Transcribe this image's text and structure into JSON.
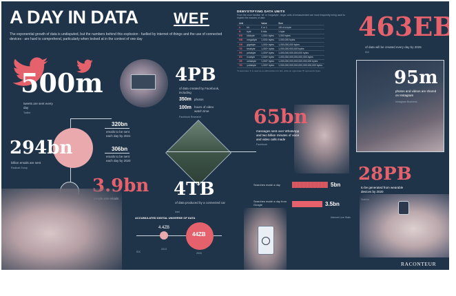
{
  "header": {
    "title": "A DAY IN DATA",
    "logo_text": "WEF",
    "intro": "The exponential growth of data is undisputed, but the numbers behind this explosion - fuelled by internet of things and the use of connected devices - are hard to comprehend, particularly when looked at in the context of one day"
  },
  "units": {
    "title": "DEMYSTIFYING DATA UNITS",
    "subtitle": "From the more familiar 'bit' or 'megabyte', larger units of measurement are more frequently being used to explain the masses of data",
    "col_unit": "Unit",
    "col_value": "Value",
    "col_size": "Size",
    "rows": [
      {
        "abbr": "b",
        "name": "bit",
        "value": "0 or 1",
        "size": "1/8 of a byte"
      },
      {
        "abbr": "B",
        "name": "byte",
        "value": "8 bits",
        "size": "1 byte"
      },
      {
        "abbr": "KB",
        "name": "kilobyte",
        "value": "1,000¹ bytes",
        "size": "1,000 bytes"
      },
      {
        "abbr": "MB",
        "name": "megabyte",
        "value": "1,000² bytes",
        "size": "1,000,000 bytes"
      },
      {
        "abbr": "GB",
        "name": "gigabyte",
        "value": "1,000³ bytes",
        "size": "1,000,000,000 bytes"
      },
      {
        "abbr": "TB",
        "name": "terabyte",
        "value": "1,000⁴ bytes",
        "size": "1,000,000,000,000 bytes"
      },
      {
        "abbr": "PB",
        "name": "petabyte",
        "value": "1,000⁵ bytes",
        "size": "1,000,000,000,000,000 bytes"
      },
      {
        "abbr": "EB",
        "name": "exabyte",
        "value": "1,000⁶ bytes",
        "size": "1,000,000,000,000,000,000 bytes"
      },
      {
        "abbr": "ZB",
        "name": "zettabyte",
        "value": "1,000⁷ bytes",
        "size": "1,000,000,000,000,000,000,000 bytes"
      },
      {
        "abbr": "YB",
        "name": "yottabyte",
        "value": "1,000⁸ bytes",
        "size": "1,000,000,000,000,000,000,000,000 bytes"
      }
    ],
    "footnote": "*A lowercase 'b' is used as an abbreviation for bits, while an uppercase 'B' represents bytes"
  },
  "stats": {
    "eb": {
      "value": "463EB",
      "desc": "of data will be created every day by 2025",
      "source": "IDC"
    },
    "tweets": {
      "value": "500m",
      "desc": "tweets are sent every day",
      "source": "Twitter"
    },
    "facebook": {
      "value": "4PB",
      "desc": "of data created by Facebook, including",
      "photos_value": "350m",
      "photos_desc": "photos",
      "video_value": "100m",
      "video_desc": "hours of video watch time",
      "source": "Facebook Research"
    },
    "instagram": {
      "value": "95m",
      "desc": "photos and videos are shared on Instagram",
      "source": "Instagram Business"
    },
    "whatsapp": {
      "value": "65bn",
      "desc": "messages sent over WhatsApp and two billion minutes of voice and video calls made",
      "source": "Facebook"
    },
    "emails": {
      "value": "294bn",
      "desc": "billion emails are sent",
      "source": "Radicati Group"
    },
    "emails_2021": {
      "value": "320bn",
      "desc": "emails to be sent each day by 2021"
    },
    "emails_2020": {
      "value": "306bn",
      "desc": "emails to be sent each day by 2020"
    },
    "email_users": {
      "value": "3.9bn",
      "desc": "people use emails"
    },
    "car": {
      "value": "4TB",
      "desc": "of data produced by a connected car",
      "source": "Intel"
    },
    "wearables": {
      "value": "28PB",
      "desc": "to be generated from wearable devices by 2020",
      "source": "Statista"
    },
    "searches": {
      "bar1_label": "Searches made a day",
      "bar1_value": "5bn",
      "bar2_label": "Searches made a day from Google",
      "bar2_value": "3.5bn",
      "source": "Internet Live Stats"
    },
    "universe": {
      "title": "ACCUMULATED DIGITAL UNIVERSE OF DATA",
      "v1": "4.4ZB",
      "y1": "2013",
      "v2": "44ZB",
      "y2": "2020",
      "source": "IDC"
    }
  },
  "footer": {
    "brand": "RACONTEUR"
  }
}
